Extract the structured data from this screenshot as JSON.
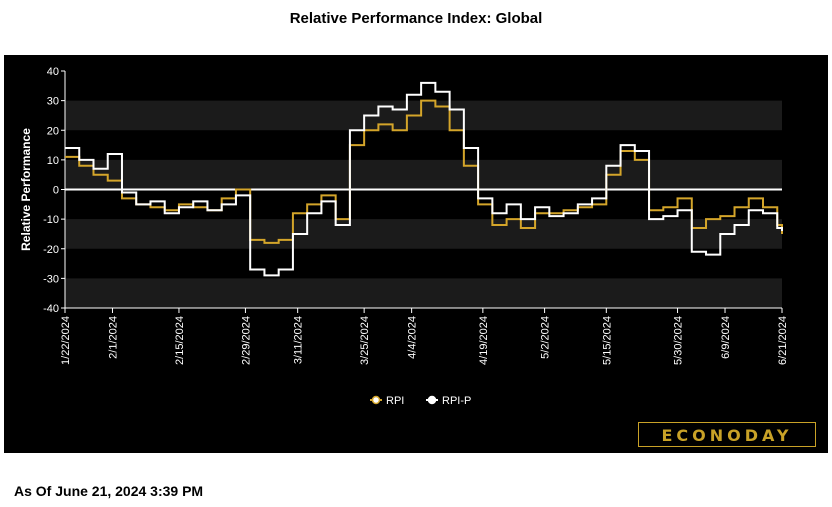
{
  "header": {
    "title": "Relative Performance Index: Global"
  },
  "footer": {
    "as_of": "As Of June 21, 2024 3:39 PM"
  },
  "brand": {
    "logo_text": "ECONODAY"
  },
  "colors": {
    "rpi": "#d4a52a",
    "rpi_p": "#ffffff",
    "background": "#000000",
    "band": "#1b1b1b"
  },
  "chart_data": {
    "type": "line",
    "title": "Relative Performance Index: Global",
    "ylabel": "Relative Performance",
    "xlabel": "",
    "ylim": [
      -40,
      40
    ],
    "yticks": [
      40,
      30,
      20,
      10,
      0,
      -10,
      -20,
      -30,
      -40
    ],
    "xlim": [
      "2024-01-22",
      "2024-06-21"
    ],
    "xtick_labels": [
      {
        "date": "2024-01-22",
        "label": "1/22/2024"
      },
      {
        "date": "2024-02-01",
        "label": "2/1/2024"
      },
      {
        "date": "2024-02-15",
        "label": "2/15/2024"
      },
      {
        "date": "2024-02-29",
        "label": "2/29/2024"
      },
      {
        "date": "2024-03-11",
        "label": "3/11/2024"
      },
      {
        "date": "2024-03-25",
        "label": "3/25/2024"
      },
      {
        "date": "2024-04-04",
        "label": "4/4/2024"
      },
      {
        "date": "2024-04-19",
        "label": "4/19/2024"
      },
      {
        "date": "2024-05-02",
        "label": "5/2/2024"
      },
      {
        "date": "2024-05-15",
        "label": "5/15/2024"
      },
      {
        "date": "2024-05-30",
        "label": "5/30/2024"
      },
      {
        "date": "2024-06-09",
        "label": "6/9/2024"
      },
      {
        "date": "2024-06-21",
        "label": "6/21/2024"
      }
    ],
    "grid": "alternating horizontal bands",
    "zero_line": true,
    "legend": "bottom-center",
    "x": [
      "2024-01-22",
      "2024-01-25",
      "2024-01-28",
      "2024-01-31",
      "2024-02-03",
      "2024-02-06",
      "2024-02-09",
      "2024-02-12",
      "2024-02-15",
      "2024-02-18",
      "2024-02-21",
      "2024-02-24",
      "2024-02-27",
      "2024-03-01",
      "2024-03-04",
      "2024-03-07",
      "2024-03-10",
      "2024-03-13",
      "2024-03-16",
      "2024-03-19",
      "2024-03-22",
      "2024-03-25",
      "2024-03-28",
      "2024-03-31",
      "2024-04-03",
      "2024-04-06",
      "2024-04-09",
      "2024-04-12",
      "2024-04-15",
      "2024-04-18",
      "2024-04-21",
      "2024-04-24",
      "2024-04-27",
      "2024-04-30",
      "2024-05-03",
      "2024-05-06",
      "2024-05-09",
      "2024-05-12",
      "2024-05-15",
      "2024-05-18",
      "2024-05-21",
      "2024-05-24",
      "2024-05-27",
      "2024-05-30",
      "2024-06-02",
      "2024-06-05",
      "2024-06-08",
      "2024-06-11",
      "2024-06-14",
      "2024-06-17",
      "2024-06-20",
      "2024-06-21"
    ],
    "series": [
      {
        "name": "RPI",
        "values": [
          11,
          8,
          5,
          3,
          -3,
          -5,
          -6,
          -7,
          -5,
          -6,
          -7,
          -3,
          0,
          -17,
          -18,
          -17,
          -8,
          -5,
          -2,
          -10,
          15,
          20,
          22,
          20,
          25,
          30,
          28,
          20,
          8,
          -5,
          -12,
          -10,
          -13,
          -8,
          -8,
          -7,
          -6,
          -5,
          5,
          13,
          10,
          -7,
          -6,
          -3,
          -13,
          -10,
          -9,
          -6,
          -3,
          -6,
          -12,
          -15
        ]
      },
      {
        "name": "RPI-P",
        "values": [
          14,
          10,
          7,
          12,
          -1,
          -5,
          -4,
          -8,
          -6,
          -4,
          -7,
          -5,
          -2,
          -27,
          -29,
          -27,
          -15,
          -8,
          -4,
          -12,
          20,
          25,
          28,
          27,
          32,
          36,
          33,
          27,
          14,
          -3,
          -8,
          -5,
          -10,
          -6,
          -9,
          -8,
          -5,
          -3,
          8,
          15,
          13,
          -10,
          -9,
          -7,
          -21,
          -22,
          -15,
          -12,
          -7,
          -8,
          -13,
          -14
        ]
      }
    ]
  }
}
